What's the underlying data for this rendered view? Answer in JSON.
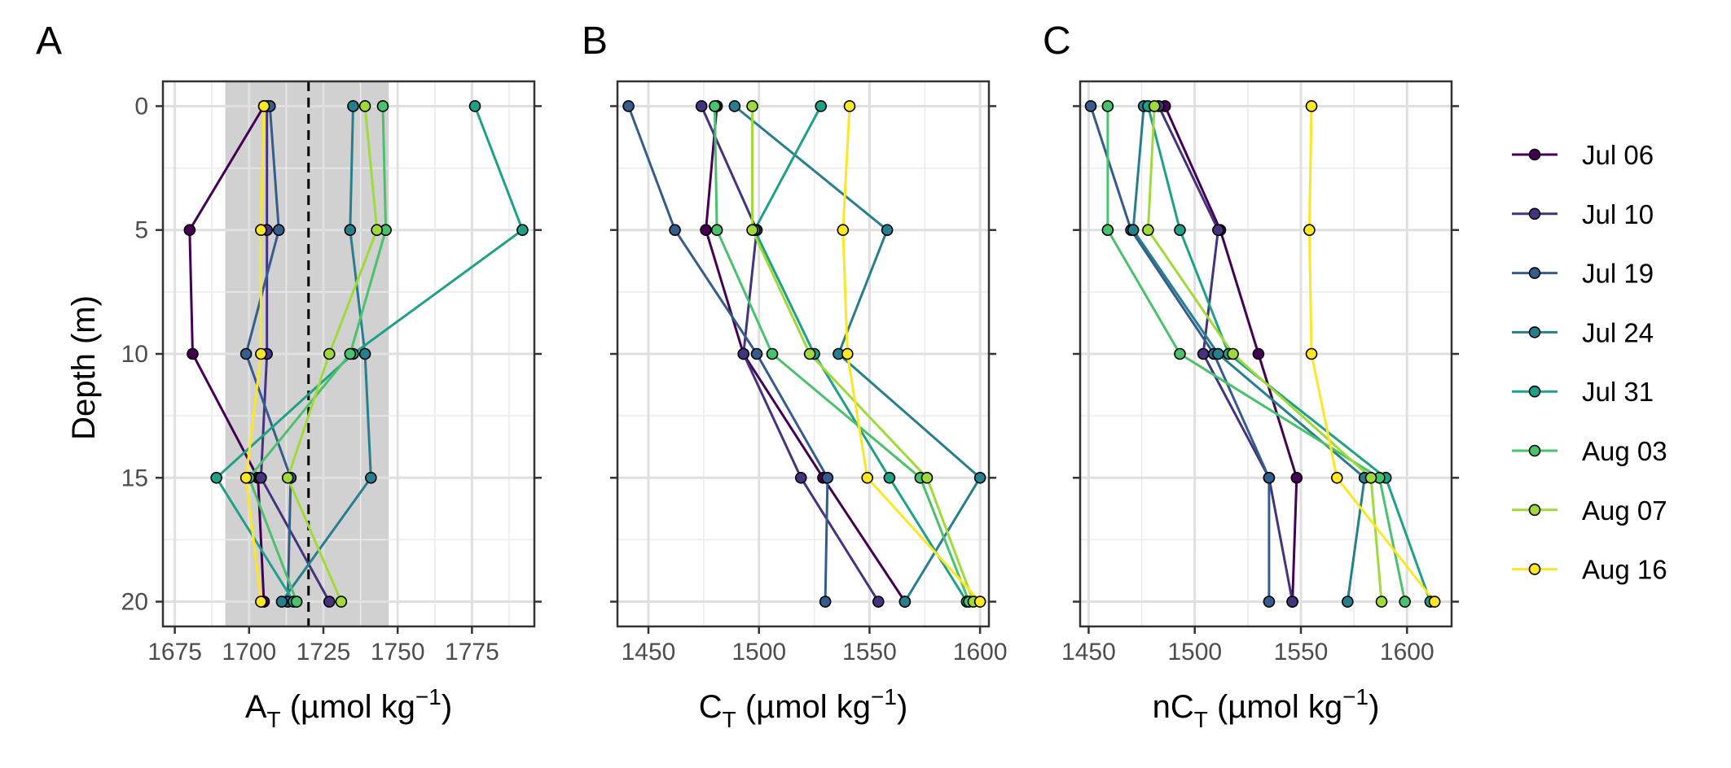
{
  "legend": {
    "dates": [
      "Jul 06",
      "Jul 10",
      "Jul 19",
      "Jul 24",
      "Jul 31",
      "Aug 03",
      "Aug 07",
      "Aug 16"
    ],
    "colors": [
      "#440154",
      "#46337e",
      "#365c8d",
      "#277f8e",
      "#1fa187",
      "#4ac16d",
      "#9fda3a",
      "#fde725"
    ]
  },
  "shared": {
    "ylabel": "Depth (m)",
    "depths": [
      0,
      5,
      10,
      15,
      20
    ],
    "ytick_labels": [
      "0",
      "5",
      "10",
      "15",
      "20"
    ]
  },
  "chart_data": [
    {
      "type": "line",
      "panel": "A",
      "xlabel_main": "A",
      "xlabel_sub": "T",
      "xlabel_units": " (µmol kg",
      "xlabel_sup": "−1",
      "xlabel_close": ")",
      "xlim": [
        1671,
        1796
      ],
      "ylim": [
        21,
        -1
      ],
      "xticks": [
        1675,
        1700,
        1725,
        1750,
        1775
      ],
      "xtick_labels": [
        "1675",
        "1700",
        "1725",
        "1750",
        "1775"
      ],
      "shaded_range": [
        1692,
        1747
      ],
      "reference_line": 1720,
      "series": [
        {
          "name": "Jul 06",
          "values": [
            1705,
            1680,
            1681,
            1703,
            1705
          ]
        },
        {
          "name": "Jul 10",
          "values": [
            1706,
            1706,
            1706,
            1704,
            1727
          ]
        },
        {
          "name": "Jul 19",
          "values": [
            1707,
            1710,
            1699,
            1714,
            1713
          ]
        },
        {
          "name": "Jul 24",
          "values": [
            1735,
            1734,
            1739,
            1741,
            1711
          ]
        },
        {
          "name": "Jul 31",
          "values": [
            1776,
            1792,
            1735,
            1689,
            1715
          ]
        },
        {
          "name": "Aug 03",
          "values": [
            1745,
            1746,
            1734,
            1700,
            1716
          ]
        },
        {
          "name": "Aug 07",
          "values": [
            1739,
            1743,
            1727,
            1713,
            1731
          ]
        },
        {
          "name": "Aug 16",
          "values": [
            1705,
            1704,
            1704,
            1699,
            1704
          ]
        }
      ]
    },
    {
      "type": "line",
      "panel": "B",
      "xlabel_main": "C",
      "xlabel_sub": "T",
      "xlabel_units": " (µmol kg",
      "xlabel_sup": "−1",
      "xlabel_close": ")",
      "xlim": [
        1436,
        1604
      ],
      "ylim": [
        21,
        -1
      ],
      "xticks": [
        1450,
        1500,
        1550,
        1600
      ],
      "xtick_labels": [
        "1450",
        "1500",
        "1550",
        "1600"
      ],
      "series": [
        {
          "name": "Jul 06",
          "values": [
            1481,
            1476,
            1493,
            1529,
            1566
          ]
        },
        {
          "name": "Jul 10",
          "values": [
            1474,
            1499,
            1493,
            1519,
            1554
          ]
        },
        {
          "name": "Jul 19",
          "values": [
            1441,
            1462,
            1499,
            1531,
            1530
          ]
        },
        {
          "name": "Jul 24",
          "values": [
            1489,
            1558,
            1536,
            1600,
            1566
          ]
        },
        {
          "name": "Jul 31",
          "values": [
            1528,
            1498,
            1525,
            1559,
            1594
          ]
        },
        {
          "name": "Aug 03",
          "values": [
            1480,
            1481,
            1506,
            1573,
            1595
          ]
        },
        {
          "name": "Aug 07",
          "values": [
            1497,
            1497,
            1523,
            1576,
            1597
          ]
        },
        {
          "name": "Aug 16",
          "values": [
            1541,
            1538,
            1540,
            1549,
            1600
          ]
        }
      ]
    },
    {
      "type": "line",
      "panel": "C",
      "xlabel_main": "nC",
      "xlabel_sub": "T",
      "xlabel_units": " (µmol kg",
      "xlabel_sup": "−1",
      "xlabel_close": ")",
      "xlim": [
        1446,
        1621
      ],
      "ylim": [
        21,
        -1
      ],
      "xticks": [
        1450,
        1500,
        1550,
        1600
      ],
      "xtick_labels": [
        "1450",
        "1500",
        "1550",
        "1600"
      ],
      "series": [
        {
          "name": "Jul 06",
          "values": [
            1486,
            1512,
            1530,
            1548,
            1546
          ]
        },
        {
          "name": "Jul 10",
          "values": [
            1483,
            1511,
            1504,
            1535,
            1546
          ]
        },
        {
          "name": "Jul 19",
          "values": [
            1451,
            1470,
            1509,
            1535,
            1535
          ]
        },
        {
          "name": "Jul 24",
          "values": [
            1476,
            1471,
            1511,
            1580,
            1572
          ]
        },
        {
          "name": "Jul 31",
          "values": [
            1478,
            1493,
            1516,
            1590,
            1611
          ]
        },
        {
          "name": "Aug 03",
          "values": [
            1459,
            1459,
            1493,
            1587,
            1599
          ]
        },
        {
          "name": "Aug 07",
          "values": [
            1481,
            1478,
            1518,
            1583,
            1588
          ]
        },
        {
          "name": "Aug 16",
          "values": [
            1555,
            1554,
            1555,
            1567,
            1613
          ]
        }
      ]
    }
  ]
}
